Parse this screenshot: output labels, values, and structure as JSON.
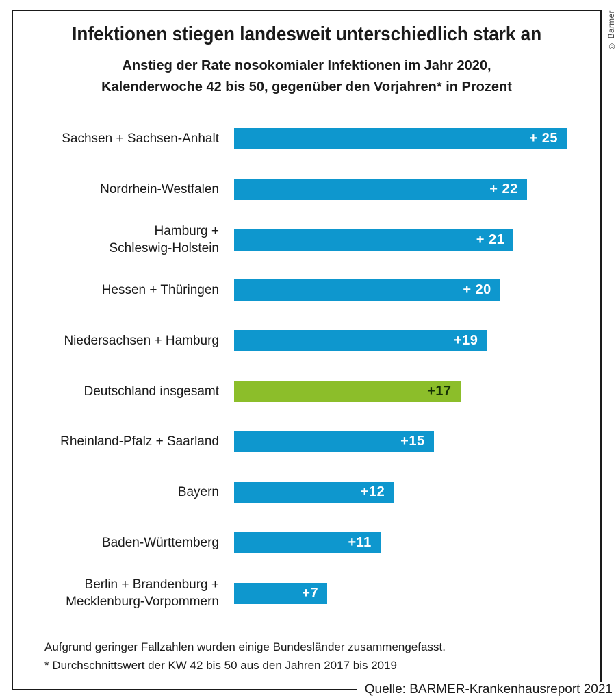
{
  "copyright": "© Barmer",
  "title": "Infektionen stiegen landesweit unterschiedlich stark an",
  "subtitle_line1": "Anstieg der Rate nosokomialer Infektionen im Jahr 2020,",
  "subtitle_line2": "Kalenderwoche 42 bis 50, gegenüber den Vorjahren* in Prozent",
  "footnotes": [
    "Aufgrund geringer Fallzahlen wurden einige Bundesländer zusammengefasst.",
    "* Durchschnittswert der KW 42 bis 50 aus den Jahren 2017 bis 2019"
  ],
  "source": "Quelle: BARMER-Krankenhausreport 2021",
  "colors": {
    "bar_blue": "#0E97CE",
    "bar_green": "#8CBE2A",
    "value_on_blue": "#FFFFFF",
    "value_on_green": "#143005",
    "text_dark": "#1A1A1A"
  },
  "chart_data": {
    "type": "bar",
    "orientation": "horizontal",
    "title": "Infektionen stiegen landesweit unterschiedlich stark an",
    "subtitle": "Anstieg der Rate nosokomialer Infektionen im Jahr 2020, Kalenderwoche 42 bis 50, gegenüber den Vorjahren* in Prozent",
    "unit": "Prozent",
    "xlabel": "",
    "ylabel": "",
    "xlim": [
      0,
      25
    ],
    "grid": false,
    "legend": false,
    "categories": [
      "Sachsen + Sachsen-Anhalt",
      "Nordrhein-Westfalen",
      "Hamburg +\nSchleswig-Holstein",
      "Hessen + Thüringen",
      "Niedersachsen + Hamburg",
      "Deutschland insgesamt",
      "Rheinland-Pfalz + Saarland",
      "Bayern",
      "Baden-Württemberg",
      "Berlin + Brandenburg +\nMecklenburg-Vorpommern"
    ],
    "values": [
      25,
      22,
      21,
      20,
      19,
      17,
      15,
      12,
      11,
      7
    ],
    "value_labels": [
      "+ 25",
      "+ 22",
      "+ 21",
      "+ 20",
      "+19",
      "+17",
      "+15",
      "+12",
      "+11",
      "+7"
    ],
    "highlight_index": 5,
    "highlight_label": "Deutschland insgesamt"
  }
}
